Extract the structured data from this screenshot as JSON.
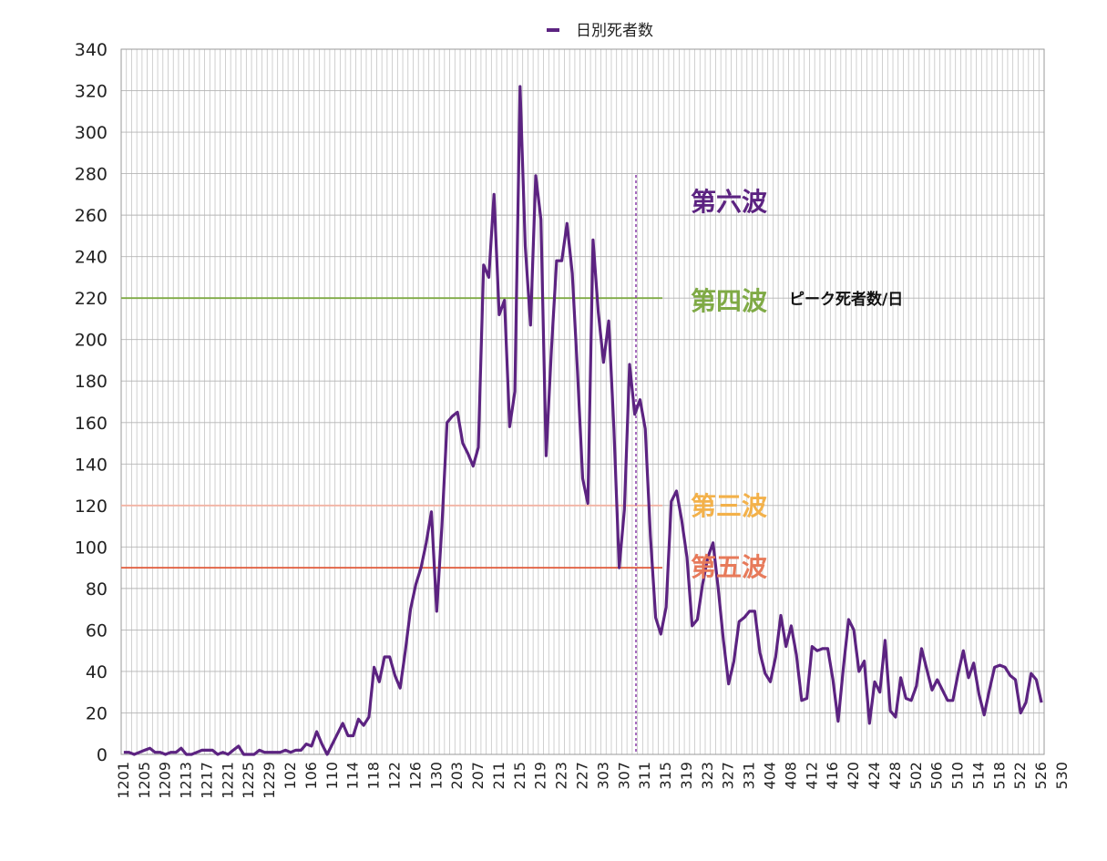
{
  "chart_data": {
    "type": "line",
    "title": "",
    "xlabel": "",
    "ylabel": "",
    "ylim": [
      0,
      340
    ],
    "yticks": [
      0,
      20,
      40,
      60,
      80,
      100,
      120,
      140,
      160,
      180,
      200,
      220,
      240,
      260,
      280,
      300,
      320,
      340
    ],
    "grid": true,
    "legend": "top-center",
    "x_tick_labels": [
      "1201",
      "1205",
      "1209",
      "1213",
      "1217",
      "1221",
      "1225",
      "1229",
      "102",
      "106",
      "110",
      "114",
      "118",
      "122",
      "126",
      "130",
      "203",
      "207",
      "211",
      "215",
      "219",
      "223",
      "227",
      "303",
      "307",
      "311",
      "315",
      "319",
      "323",
      "327",
      "331",
      "404",
      "408",
      "412",
      "416",
      "420",
      "424",
      "428",
      "502",
      "506",
      "510",
      "514",
      "518",
      "522",
      "526",
      "530"
    ],
    "series": [
      {
        "name": "日別死者数",
        "color": "#5c2381",
        "values": [
          1,
          1,
          0,
          1,
          2,
          3,
          1,
          1,
          0,
          1,
          1,
          3,
          0,
          0,
          1,
          2,
          2,
          2,
          0,
          1,
          0,
          2,
          4,
          0,
          0,
          0,
          2,
          1,
          1,
          1,
          1,
          2,
          1,
          2,
          2,
          5,
          4,
          11,
          5,
          0,
          5,
          10,
          15,
          9,
          9,
          17,
          14,
          18,
          42,
          35,
          47,
          47,
          38,
          32,
          50,
          70,
          82,
          90,
          102,
          117,
          69,
          110,
          160,
          163,
          165,
          150,
          145,
          139,
          148,
          236,
          230,
          270,
          212,
          219,
          158,
          175,
          322,
          245,
          207,
          279,
          258,
          144,
          195,
          238,
          238,
          256,
          232,
          185,
          133,
          121,
          248,
          213,
          189,
          209,
          157,
          90,
          118,
          188,
          164,
          171,
          157,
          105,
          66,
          58,
          71,
          122,
          127,
          113,
          95,
          62,
          65,
          82,
          95,
          102,
          80,
          55,
          34,
          45,
          64,
          66,
          69,
          69,
          49,
          39,
          35,
          47,
          67,
          52,
          62,
          48,
          26,
          27,
          52,
          50,
          51,
          51,
          36,
          16,
          42,
          65,
          60,
          40,
          45,
          15,
          35,
          30,
          55,
          21,
          18,
          37,
          27,
          26,
          33,
          51,
          41,
          31,
          36,
          31,
          26,
          26,
          39,
          50,
          37,
          44,
          29,
          19,
          31,
          42,
          43,
          42,
          38,
          36,
          20,
          25,
          39,
          36,
          25
        ]
      }
    ],
    "reference_lines": [
      {
        "label": "第四波",
        "value": 220,
        "color": "#7faa45"
      },
      {
        "label": "第三波",
        "value": 120,
        "color": "#f2b3a3"
      },
      {
        "label": "第五波",
        "value": 90,
        "color": "#e05a3a"
      }
    ],
    "annotations": {
      "sixth_wave": "第六波",
      "fourth_wave": "第四波",
      "third_wave": "第三波",
      "fifth_wave": "第五波",
      "peak_note": "ピーク死者数/日"
    },
    "colors": {
      "sixth": "#5c2381",
      "fourth": "#7faa45",
      "third": "#f3b14a",
      "fifth": "#e77a5a"
    }
  }
}
